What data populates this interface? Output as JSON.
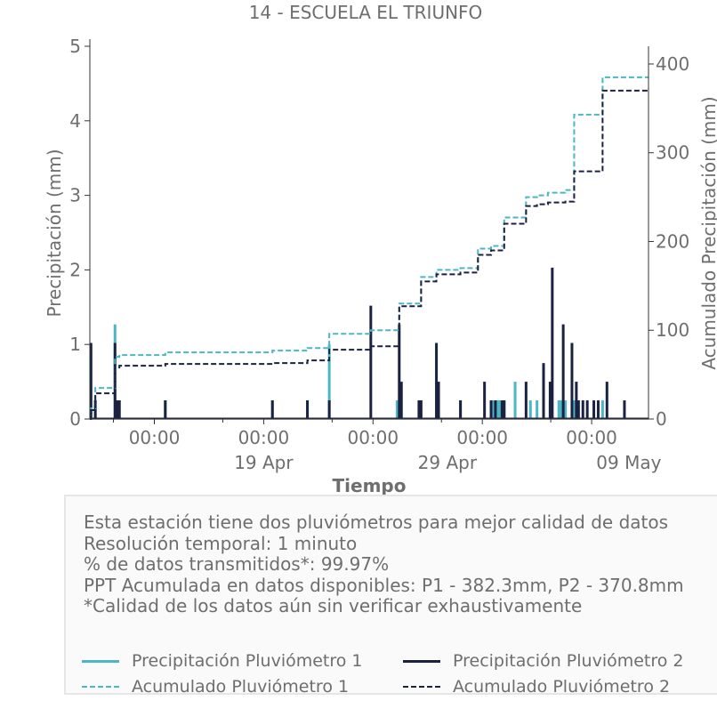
{
  "colors": {
    "p1": "#4db6c4",
    "p2": "#1b2241",
    "text": "#6e6e6e",
    "axis": "#333333"
  },
  "chart_data": {
    "type": "line",
    "title": "14 - ESCUELA EL TRIUNFO",
    "xlabel": "Tiempo",
    "ylabel_left": "Precipitación (mm)",
    "ylabel_right": "Acumulado Precipitación (mm)",
    "ylim_left": [
      0,
      5
    ],
    "ylim_right": [
      0,
      420
    ],
    "yticks_left": [
      "0",
      "1",
      "2",
      "3",
      "4",
      "5"
    ],
    "yticks_right": [
      "0",
      "100",
      "200",
      "300",
      "400"
    ],
    "x_tick_labels": [
      "00:00",
      "00:00",
      "00:00",
      "00:00",
      "00:00"
    ],
    "x_date_labels": [
      "19 Apr",
      "29 Apr",
      "09 May"
    ],
    "xlim_days": [
      -2.95,
      22.6
    ],
    "series": [
      {
        "name": "Precipitación Pluviómetro 1",
        "kind": "bars",
        "x": [
          -2.9,
          -2.7,
          -1.8,
          -1.7,
          -1.6,
          0.5,
          5.4,
          7.0,
          8.0,
          11.1,
          11.2,
          12.9,
          13.0,
          14.0,
          15.5,
          15.7,
          15.8,
          16.0,
          16.5,
          17.2,
          17.5,
          17.8,
          18.1,
          18.5,
          18.6,
          18.8,
          19.2,
          20.5
        ],
        "values": [
          1.0,
          0.25,
          1.27,
          0.25,
          0.25,
          0.25,
          0.25,
          0.25,
          1.0,
          0.25,
          0.25,
          0.5,
          0.25,
          0.25,
          0.25,
          0.25,
          0.25,
          0.25,
          0.5,
          0.25,
          0.25,
          0.25,
          0.25,
          0.25,
          0.25,
          0.25,
          0.25,
          0.25
        ]
      },
      {
        "name": "Precipitación Pluviómetro 2",
        "kind": "bars",
        "x": [
          -2.9,
          -2.7,
          -1.8,
          -1.7,
          -1.6,
          0.5,
          5.4,
          7.0,
          8.0,
          9.9,
          11.2,
          11.3,
          12.1,
          12.2,
          12.9,
          13.0,
          14.0,
          15.1,
          15.4,
          15.6,
          15.9,
          16.0,
          17.0,
          17.8,
          18.1,
          18.2,
          18.7,
          19.1,
          19.3,
          19.4,
          19.6,
          19.8,
          20.1,
          20.3,
          20.7,
          21.5
        ],
        "values": [
          1.02,
          0.25,
          1.02,
          0.25,
          0.25,
          0.25,
          0.25,
          0.25,
          0.25,
          1.52,
          1.27,
          0.5,
          0.25,
          0.25,
          1.02,
          0.5,
          0.25,
          0.5,
          0.25,
          0.25,
          0.25,
          0.25,
          0.5,
          0.75,
          0.5,
          2.03,
          1.27,
          1.02,
          0.5,
          0.25,
          0.25,
          0.25,
          0.25,
          0.25,
          0.5,
          0.25
        ]
      },
      {
        "name": "Acumulado Pluviómetro 1",
        "kind": "cumulative",
        "x": [
          -2.95,
          -2.9,
          -2.7,
          -1.8,
          -1.6,
          0.5,
          5.4,
          7.0,
          8.0,
          9.9,
          11.2,
          12.2,
          12.9,
          14.0,
          14.8,
          15.4,
          16.0,
          17.0,
          17.5,
          18.0,
          18.8,
          19.2,
          20.5,
          22.6
        ],
        "values": [
          0,
          12,
          35,
          70,
          72,
          75,
          77,
          80,
          96,
          100,
          130,
          160,
          168,
          170,
          192,
          195,
          227,
          250,
          252,
          255,
          258,
          343,
          385,
          385
        ]
      },
      {
        "name": "Acumulado Pluviómetro 2",
        "kind": "cumulative",
        "x": [
          -2.95,
          -2.9,
          -2.7,
          -1.8,
          -1.6,
          0.5,
          5.4,
          7.0,
          8.0,
          9.9,
          11.2,
          12.2,
          12.9,
          14.0,
          14.8,
          15.4,
          16.0,
          17.0,
          17.5,
          18.0,
          18.8,
          19.2,
          20.5,
          22.6
        ],
        "values": [
          0,
          10,
          29,
          58,
          60,
          62,
          63,
          66,
          78,
          82,
          127,
          155,
          163,
          165,
          185,
          190,
          220,
          240,
          242,
          244,
          245,
          279,
          370,
          372
        ]
      }
    ]
  },
  "info": {
    "lines": [
      "Esta estación tiene dos pluviómetros para mejor calidad de datos",
      "Resolución temporal: 1 minuto",
      "% de datos transmitidos*: 99.97%",
      "PPT Acumulada en datos disponibles: P1 - 382.3mm, P2 - 370.8mm",
      "*Calidad de los datos aún sin verificar exhaustivamente"
    ]
  },
  "legend": {
    "p1_bar": "Precipitación Pluviómetro 1",
    "p2_bar": "Precipitación Pluviómetro 2",
    "p1_cum": "Acumulado Pluviómetro 1",
    "p2_cum": "Acumulado Pluviómetro 2"
  }
}
